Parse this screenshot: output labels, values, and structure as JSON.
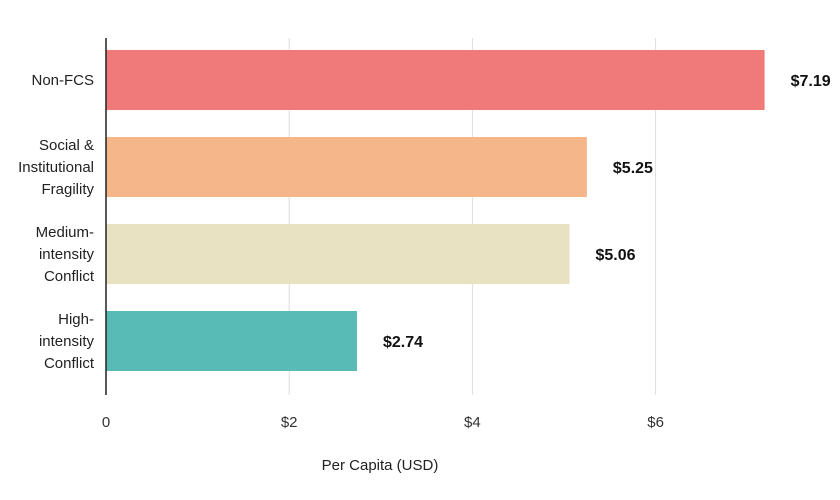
{
  "chart_data": {
    "type": "bar",
    "orientation": "horizontal",
    "title": "",
    "xlabel": "Per Capita (USD)",
    "ylabel": "",
    "xlim": [
      0,
      7.5
    ],
    "grid": true,
    "categories": [
      {
        "lines": [
          "Non-FCS"
        ],
        "value": 7.19,
        "label": "$7.19",
        "color": "#f07a7a"
      },
      {
        "lines": [
          "Social &",
          "Institutional",
          "Fragility"
        ],
        "value": 5.25,
        "label": "$5.25",
        "color": "#f5b78a"
      },
      {
        "lines": [
          "Medium-",
          "intensity",
          "Conflict"
        ],
        "value": 5.06,
        "label": "$5.06",
        "color": "#e8e2c2"
      },
      {
        "lines": [
          "High-",
          "intensity",
          "Conflict"
        ],
        "value": 2.74,
        "label": "$2.74",
        "color": "#58bbb5"
      }
    ],
    "ticks": [
      {
        "value": 0,
        "label": "0"
      },
      {
        "value": 2,
        "label": "$2"
      },
      {
        "value": 4,
        "label": "$4"
      },
      {
        "value": 6,
        "label": "$6"
      }
    ]
  }
}
